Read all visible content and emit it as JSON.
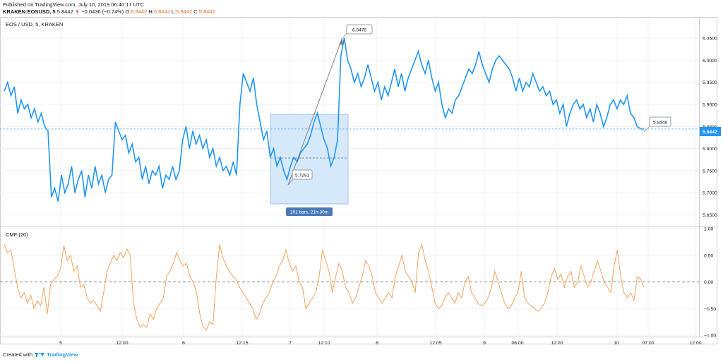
{
  "header": {
    "published": "Published on TradingView.com, July 10, 2019 06:40:17 UTC",
    "symbol": "KRAKEN:EOSUSD, 5",
    "last": "5.8442",
    "change_arrow": "▼",
    "change": "−0.0436 (−0.74%)",
    "open_label": "O:",
    "open": "5.8442",
    "high_label": "H:",
    "high": "5.8442",
    "low_label": "L:",
    "low": "5.8442",
    "close_label": "C:",
    "close": "5.8442"
  },
  "footer": {
    "created_with": "Created with",
    "brand": "TradingView",
    "logo_icon": "tradingview-logo-icon"
  },
  "colors": {
    "price": "#2196f3",
    "cmf": "#f5a25d",
    "grid": "#eef0f3",
    "last_price_bg": "#2196f3",
    "measure_fill": "#d6e9fb",
    "measure_label_bg": "#4a7ab8"
  },
  "chart_data": [
    {
      "type": "line",
      "title": "EOS / USD, 5, KRAKEN",
      "x_tick_labels": [
        "5",
        "12:00",
        "6",
        "12:15",
        "7",
        "12:10",
        "8",
        "12:05",
        "9",
        "06:00",
        "12:00",
        "10",
        "07:00",
        "12:00"
      ],
      "y_tick_labels": [
        "6.0500",
        "6.0000",
        "5.9500",
        "5.9000",
        "5.8500",
        "5.8000",
        "5.7500",
        "5.7000",
        "5.6500"
      ],
      "ylim": [
        5.625,
        6.095
      ],
      "last_price": 5.8442,
      "last_price_label": "5.8442",
      "series": [
        {
          "values": [
            5.93,
            5.95,
            5.92,
            5.94,
            5.88,
            5.91,
            5.89,
            5.9,
            5.87,
            5.89,
            5.86,
            5.88,
            5.85,
            5.84,
            5.69,
            5.71,
            5.68,
            5.74,
            5.7,
            5.72,
            5.76,
            5.7,
            5.73,
            5.75,
            5.69,
            5.74,
            5.71,
            5.76,
            5.72,
            5.74,
            5.7,
            5.73,
            5.74,
            5.86,
            5.84,
            5.82,
            5.83,
            5.79,
            5.81,
            5.77,
            5.78,
            5.73,
            5.76,
            5.72,
            5.75,
            5.74,
            5.76,
            5.71,
            5.74,
            5.73,
            5.76,
            5.73,
            5.75,
            5.82,
            5.85,
            5.8,
            5.84,
            5.81,
            5.83,
            5.8,
            5.82,
            5.78,
            5.8,
            5.76,
            5.78,
            5.75,
            5.76,
            5.74,
            5.77,
            5.74,
            5.9,
            5.97,
            5.95,
            5.93,
            5.96,
            5.9,
            5.86,
            5.82,
            5.84,
            5.78,
            5.8,
            5.76,
            5.78,
            5.75,
            5.73,
            5.76,
            5.78,
            5.77,
            5.79,
            5.8,
            5.81,
            5.83,
            5.86,
            5.88,
            5.85,
            5.82,
            5.8,
            5.76,
            5.78,
            5.82,
            6.01,
            6.05,
            6.0,
            5.98,
            5.95,
            5.97,
            5.94,
            5.96,
            5.99,
            5.96,
            5.93,
            5.95,
            5.91,
            5.94,
            5.92,
            5.95,
            5.98,
            5.94,
            5.97,
            5.93,
            5.96,
            5.98,
            6.0,
            6.02,
            5.99,
            5.97,
            6.0,
            5.96,
            5.93,
            5.95,
            5.9,
            5.87,
            5.89,
            5.88,
            5.91,
            5.92,
            5.94,
            5.96,
            5.98,
            5.97,
            5.99,
            6.02,
            5.99,
            5.97,
            5.95,
            5.98,
            6.0,
            6.01,
            6.0,
            5.99,
            5.98,
            5.96,
            5.93,
            5.96,
            5.93,
            5.95,
            5.94,
            5.97,
            5.95,
            5.93,
            5.94,
            5.92,
            5.93,
            5.9,
            5.91,
            5.88,
            5.9,
            5.85,
            5.88,
            5.9,
            5.91,
            5.89,
            5.9,
            5.87,
            5.89,
            5.86,
            5.9,
            5.88,
            5.85,
            5.87,
            5.9,
            5.91,
            5.89,
            5.91,
            5.9,
            5.92,
            5.88,
            5.87,
            5.85,
            5.8448,
            5.8442
          ]
        }
      ],
      "annotations": [
        {
          "type": "price_label",
          "text": "6.0475"
        },
        {
          "type": "price_label",
          "text": "5.7291"
        },
        {
          "type": "price_label",
          "text": "5.8448"
        },
        {
          "type": "range_label",
          "text": "101 bars, 21h 30m"
        }
      ]
    },
    {
      "type": "line",
      "title": "CMF (20)",
      "y_tick_labels": [
        "1.00",
        "0.50",
        "0.00",
        "−0.50",
        "−1.00"
      ],
      "ylim": [
        -1.0,
        1.0
      ],
      "zero_line": 0.0,
      "series": [
        {
          "values": [
            0.7,
            0.55,
            0.6,
            0.25,
            -0.1,
            -0.3,
            -0.2,
            -0.4,
            -0.25,
            -0.5,
            -0.35,
            -0.45,
            -0.1,
            -0.6,
            -0.05,
            0.05,
            0.1,
            0.25,
            0.68,
            0.4,
            0.5,
            0.2,
            0.3,
            -0.1,
            -0.05,
            -0.3,
            -0.4,
            -0.35,
            -0.45,
            -0.55,
            -0.2,
            0.2,
            0.35,
            0.5,
            0.4,
            0.55,
            0.45,
            0.62,
            0.5,
            -0.4,
            -0.7,
            -0.85,
            -0.8,
            -0.85,
            -0.6,
            -0.7,
            -0.5,
            -0.4,
            -0.3,
            0.1,
            0.2,
            0.35,
            0.55,
            0.4,
            0.3,
            0.35,
            0.1,
            0.0,
            -0.2,
            -0.6,
            -0.85,
            -0.9,
            -0.75,
            -0.8,
            0.1,
            0.7,
            0.45,
            0.3,
            0.2,
            0.1,
            0.05,
            -0.1,
            -0.2,
            -0.3,
            -0.4,
            -0.5,
            -0.7,
            -0.6,
            -0.4,
            -0.3,
            -0.2,
            0.0,
            0.1,
            0.3,
            0.4,
            0.6,
            0.35,
            0.2,
            0.3,
            0.0,
            -0.1,
            -0.5,
            -0.4,
            -0.3,
            -0.2,
            0.1,
            0.6,
            0.4,
            0.2,
            -0.2,
            0.1,
            0.35,
            0.2,
            -0.1,
            -0.2,
            -0.4,
            -0.3,
            -0.1,
            0.1,
            0.4,
            0.3,
            0.1,
            -0.2,
            -0.3,
            -0.4,
            -0.3,
            -0.2,
            -0.3,
            0.1,
            0.3,
            0.5,
            0.2,
            0.1,
            0.0,
            -0.2,
            0.55,
            0.7,
            0.4,
            0.2,
            -0.1,
            -0.4,
            -0.5,
            -0.45,
            -0.3,
            -0.2,
            -0.3,
            -0.4,
            -0.2,
            -0.3,
            0.0,
            0.1,
            -0.2,
            -0.3,
            -0.4,
            -0.45,
            -0.4,
            -0.3,
            -0.1,
            0.2,
            0.0,
            -0.2,
            -0.4,
            -0.5,
            -0.45,
            -0.3,
            -0.2,
            0.2,
            -0.3,
            -0.4,
            -0.45,
            -0.5,
            -0.55,
            -0.5,
            -0.4,
            -0.2,
            0.1,
            0.25,
            0.05,
            0.15,
            -0.1,
            0.1,
            0.2,
            -0.1,
            0.0,
            0.3,
            0.1,
            -0.1,
            0.0,
            0.2,
            0.4,
            0.2,
            0.0,
            -0.1,
            -0.2,
            0.3,
            0.6,
            0.1,
            -0.2,
            -0.3,
            -0.2,
            -0.35,
            0.1,
            0.05,
            -0.1
          ]
        }
      ]
    }
  ]
}
